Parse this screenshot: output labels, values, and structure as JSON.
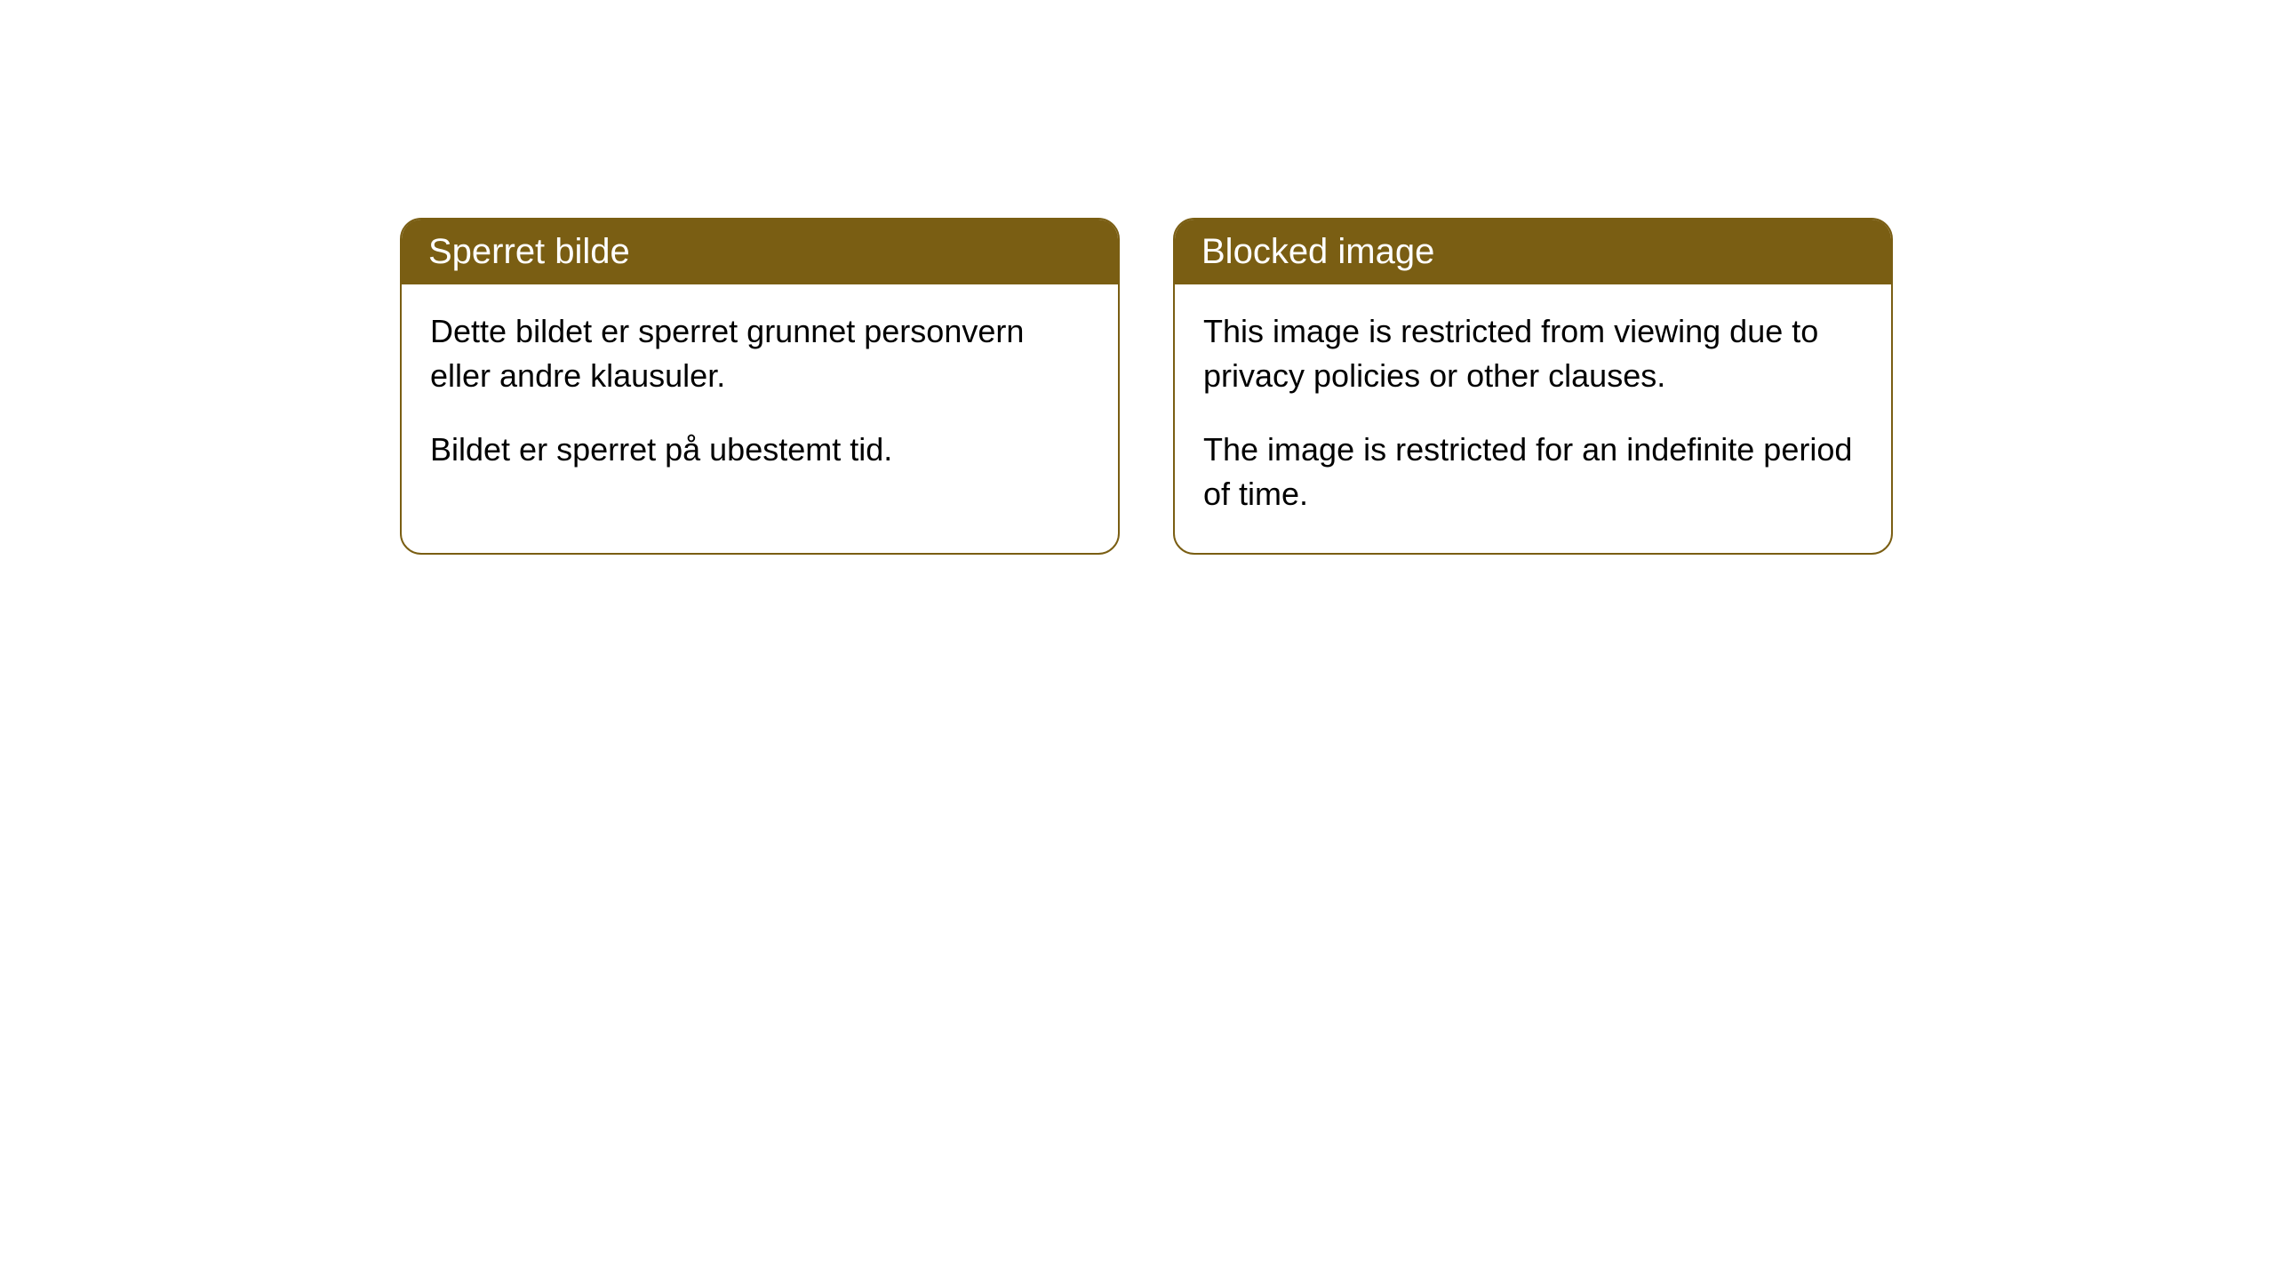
{
  "notices": [
    {
      "title": "Sperret bilde",
      "paragraph1": "Dette bildet er sperret grunnet personvern eller andre klausuler.",
      "paragraph2": "Bildet er sperret på ubestemt tid."
    },
    {
      "title": "Blocked image",
      "paragraph1": "This image is restricted from viewing due to privacy policies or other clauses.",
      "paragraph2": "The image is restricted for an indefinite period of time."
    }
  ],
  "colors": {
    "header_bg": "#7a5e13",
    "header_text": "#ffffff",
    "body_bg": "#ffffff",
    "body_text": "#000000",
    "border": "#7a5e13"
  }
}
